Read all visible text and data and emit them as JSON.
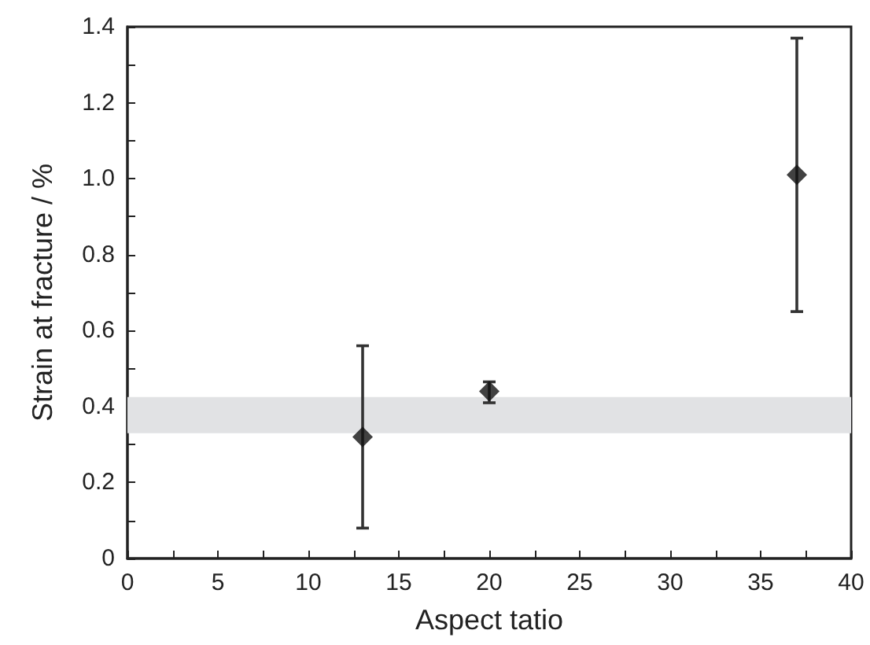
{
  "chart_data": {
    "type": "scatter",
    "xlabel": "Aspect tatio",
    "ylabel": "Strain at fracture / %",
    "x": [
      13,
      20,
      37
    ],
    "values": [
      0.32,
      0.44,
      1.01
    ],
    "errors": [
      [
        0.08,
        0.56
      ],
      [
        0.41,
        0.465
      ],
      [
        0.65,
        1.37
      ]
    ],
    "color": "#111111",
    "marker": "diamond",
    "xlim": [
      0,
      40
    ],
    "ylim": [
      0,
      1.4
    ],
    "xticks": [
      0,
      {
        "value": 2.5,
        "label": null
      },
      5,
      {
        "value": 7.5,
        "label": null
      },
      10,
      {
        "value": 12.5,
        "label": null
      },
      15,
      {
        "value": 17.5,
        "label": null
      },
      20,
      {
        "value": 22.5,
        "label": null
      },
      25,
      {
        "value": 27.5,
        "label": null
      },
      30,
      {
        "value": 32.5,
        "label": null
      },
      35,
      {
        "value": 37.5,
        "label": null
      },
      40
    ],
    "yticks": [
      {
        "value": 0,
        "label": "0"
      },
      {
        "value": 0.1,
        "label": null
      },
      {
        "value": 0.2,
        "label": "0.2"
      },
      {
        "value": 0.3,
        "label": null
      },
      {
        "value": 0.4,
        "label": "0.4"
      },
      {
        "value": 0.5,
        "label": null
      },
      {
        "value": 0.6,
        "label": "0.6"
      },
      {
        "value": 0.7,
        "label": null
      },
      {
        "value": 0.8,
        "label": "0.8"
      },
      {
        "value": 0.9,
        "label": null
      },
      {
        "value": 1.0,
        "label": "1.0"
      },
      {
        "value": 1.1,
        "label": null
      },
      {
        "value": 1.2,
        "label": "1.2"
      },
      {
        "value": 1.3,
        "label": null
      },
      {
        "value": 1.4,
        "label": "1.4"
      }
    ],
    "bands": [
      {
        "axis": "y",
        "from": 0.33,
        "to": 0.425,
        "color": "#e1e2e4"
      }
    ],
    "grid": false
  }
}
